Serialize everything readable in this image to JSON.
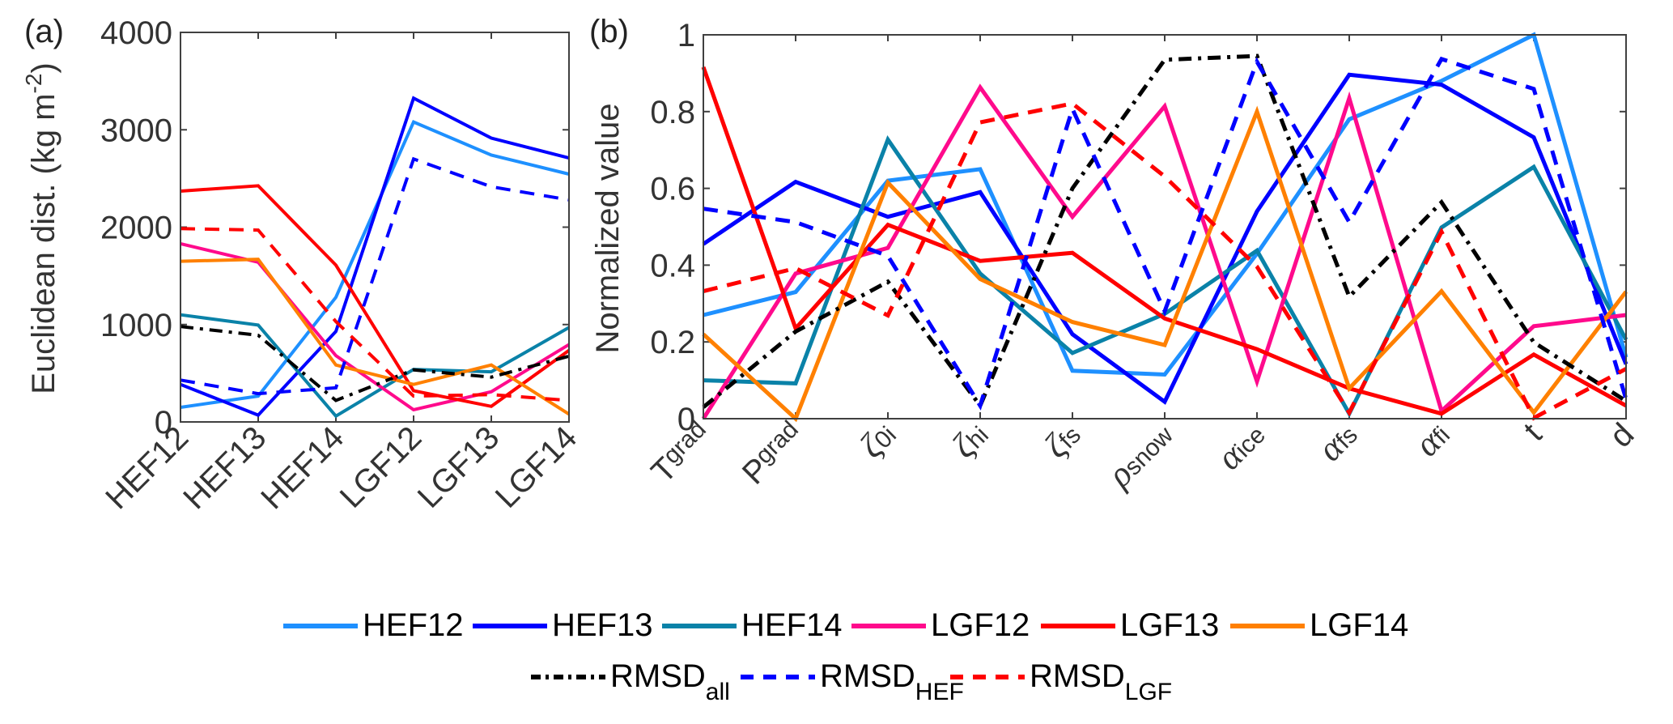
{
  "chart_data": [
    {
      "type": "line",
      "panel_label": "(a)",
      "title": "",
      "xlabel": "",
      "ylabel": "Euclidean dist. (kg m^-2)",
      "ylabel_parts": {
        "main": "Euclidean dist. (kg m",
        "sup": "-2",
        "end": ")"
      },
      "categories": [
        "HEF12",
        "HEF13",
        "HEF14",
        "LGF12",
        "LGF13",
        "LGF14"
      ],
      "ylim": [
        0,
        4000
      ],
      "yticks": [
        0,
        1000,
        2000,
        3000,
        4000
      ],
      "grid": false,
      "series": [
        {
          "name": "HEF12",
          "color": "#1E90FF",
          "style": "solid",
          "values": [
            150,
            265,
            1280,
            3080,
            2740,
            2545
          ]
        },
        {
          "name": "HEF13",
          "color": "#0000FF",
          "style": "solid",
          "values": [
            385,
            70,
            930,
            3325,
            2915,
            2710
          ]
        },
        {
          "name": "HEF14",
          "color": "#0A82A8",
          "style": "solid",
          "values": [
            1100,
            995,
            60,
            540,
            515,
            970
          ]
        },
        {
          "name": "LGF12",
          "color": "#FF0A8C",
          "style": "solid",
          "values": [
            1830,
            1640,
            680,
            125,
            310,
            795
          ]
        },
        {
          "name": "LGF13",
          "color": "#FF0000",
          "style": "solid",
          "values": [
            2370,
            2425,
            1610,
            320,
            160,
            735
          ]
        },
        {
          "name": "LGF14",
          "color": "#FF8000",
          "style": "solid",
          "values": [
            1650,
            1670,
            585,
            385,
            585,
            80
          ]
        },
        {
          "name": "RMSD_all",
          "color": "#000000",
          "style": "dashdot",
          "values": [
            980,
            890,
            220,
            535,
            460,
            675
          ]
        },
        {
          "name": "RMSD_HEF",
          "color": "#0000FF",
          "style": "dashed",
          "values": [
            430,
            290,
            350,
            2700,
            2415,
            2280
          ]
        },
        {
          "name": "RMSD_LGF",
          "color": "#FF0000",
          "style": "dashed",
          "values": [
            1985,
            1970,
            1030,
            265,
            280,
            220
          ]
        }
      ]
    },
    {
      "type": "line",
      "panel_label": "(b)",
      "title": "",
      "xlabel": "",
      "ylabel": "Normalized value",
      "categories": [
        "Tgrad",
        "Pgrad",
        "ζ0i",
        "ζhi",
        "ζfs",
        "ρsnow",
        "αice",
        "αfs",
        "αfi",
        "t",
        "d"
      ],
      "category_labels": [
        {
          "sym": "T",
          "sub": "grad",
          "italic": false
        },
        {
          "sym": "P",
          "sub": "grad",
          "italic": false
        },
        {
          "sym": "ζ",
          "sub": "0i",
          "italic": true
        },
        {
          "sym": "ζ",
          "sub": "hi",
          "italic": true
        },
        {
          "sym": "ζ",
          "sub": "fs",
          "italic": true
        },
        {
          "sym": "ρ",
          "sub": "snow",
          "italic": true
        },
        {
          "sym": "α",
          "sub": "ice",
          "italic": true
        },
        {
          "sym": "α",
          "sub": "fs",
          "italic": true
        },
        {
          "sym": "α",
          "sub": "fi",
          "italic": true
        },
        {
          "sym": "t",
          "sub": "",
          "italic": false
        },
        {
          "sym": "d",
          "sub": "",
          "italic": false
        }
      ],
      "ylim": [
        0,
        1
      ],
      "yticks": [
        0,
        0.2,
        0.4,
        0.6,
        0.8,
        1
      ],
      "ytick_labels": [
        "0",
        "0.2",
        "0.4",
        "0.6",
        "0.8",
        "1"
      ],
      "grid": false,
      "series": [
        {
          "name": "HEF12",
          "color": "#1E90FF",
          "style": "solid",
          "values": [
            0.27,
            0.33,
            0.62,
            0.65,
            0.125,
            0.115,
            0.43,
            0.78,
            0.88,
            1.0,
            0.16
          ]
        },
        {
          "name": "HEF13",
          "color": "#0000FF",
          "style": "solid",
          "values": [
            0.455,
            0.617,
            0.526,
            0.59,
            0.22,
            0.044,
            0.54,
            0.896,
            0.87,
            0.733,
            0.142
          ]
        },
        {
          "name": "HEF14",
          "color": "#0A82A8",
          "style": "solid",
          "values": [
            0.1,
            0.092,
            0.727,
            0.378,
            0.171,
            0.273,
            0.438,
            0.013,
            0.498,
            0.656,
            0.206
          ]
        },
        {
          "name": "LGF12",
          "color": "#FF0A8C",
          "style": "solid",
          "values": [
            0.0,
            0.378,
            0.445,
            0.863,
            0.526,
            0.814,
            0.097,
            0.835,
            0.02,
            0.241,
            0.27
          ]
        },
        {
          "name": "LGF13",
          "color": "#FF0000",
          "style": "solid",
          "values": [
            0.916,
            0.235,
            0.505,
            0.411,
            0.432,
            0.261,
            0.181,
            0.079,
            0.013,
            0.167,
            0.034
          ]
        },
        {
          "name": "LGF14",
          "color": "#FF8000",
          "style": "solid",
          "values": [
            0.22,
            0.0,
            0.615,
            0.364,
            0.252,
            0.192,
            0.8,
            0.079,
            0.332,
            0.016,
            0.331
          ]
        },
        {
          "name": "RMSD_all",
          "color": "#000000",
          "style": "dashdot",
          "values": [
            0.03,
            0.227,
            0.357,
            0.034,
            0.6,
            0.935,
            0.945,
            0.318,
            0.564,
            0.199,
            0.046
          ]
        },
        {
          "name": "RMSD_HEF",
          "color": "#0000FF",
          "style": "dashed",
          "values": [
            0.547,
            0.512,
            0.424,
            0.034,
            0.807,
            0.28,
            0.93,
            0.512,
            0.937,
            0.859,
            0.051
          ]
        },
        {
          "name": "RMSD_LGF",
          "color": "#FF0000",
          "style": "dashed",
          "values": [
            0.332,
            0.392,
            0.269,
            0.772,
            0.821,
            0.631,
            0.396,
            0.016,
            0.487,
            0.002,
            0.13
          ]
        }
      ]
    }
  ],
  "legend": {
    "placement": "bottom-center",
    "row1": [
      {
        "name": "HEF12",
        "label": "HEF12",
        "sub": "",
        "color": "#1E90FF",
        "style": "solid"
      },
      {
        "name": "HEF13",
        "label": "HEF13",
        "sub": "",
        "color": "#0000FF",
        "style": "solid"
      },
      {
        "name": "HEF14",
        "label": "HEF14",
        "sub": "",
        "color": "#0A82A8",
        "style": "solid"
      },
      {
        "name": "LGF12",
        "label": "LGF12",
        "sub": "",
        "color": "#FF0A8C",
        "style": "solid"
      },
      {
        "name": "LGF13",
        "label": "LGF13",
        "sub": "",
        "color": "#FF0000",
        "style": "solid"
      },
      {
        "name": "LGF14",
        "label": "LGF14",
        "sub": "",
        "color": "#FF8000",
        "style": "solid"
      }
    ],
    "row2": [
      {
        "name": "RMSD_all",
        "label": "RMSD",
        "sub": "all",
        "color": "#000000",
        "style": "dashdot"
      },
      {
        "name": "RMSD_HEF",
        "label": "RMSD",
        "sub": "HEF",
        "color": "#0000FF",
        "style": "dashed"
      },
      {
        "name": "RMSD_LGF",
        "label": "RMSD",
        "sub": "LGF",
        "color": "#FF0000",
        "style": "dashed"
      }
    ]
  }
}
